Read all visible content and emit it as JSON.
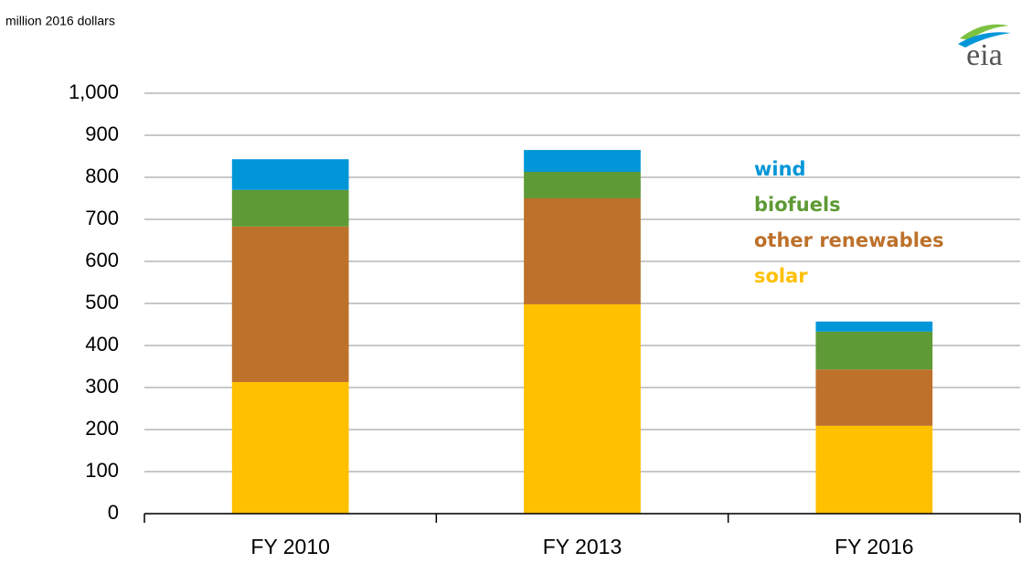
{
  "chart_data": {
    "type": "stacked_bar",
    "subtitle": "million 2016 dollars",
    "logo": "eia",
    "categories": [
      "FY 2010",
      "FY 2013",
      "FY 2016"
    ],
    "series": [
      {
        "name": "solar",
        "color": "#ffc000",
        "values": [
          313,
          498,
          209
        ]
      },
      {
        "name": "other renewables",
        "color": "#bd712b",
        "values": [
          370,
          252,
          134
        ]
      },
      {
        "name": "biofuels",
        "color": "#5e9a35",
        "values": [
          87,
          63,
          90
        ]
      },
      {
        "name": "wind",
        "color": "#0096d7",
        "values": [
          73,
          52,
          24
        ]
      }
    ],
    "ylim": [
      0,
      1000
    ],
    "yticks": [
      0,
      100,
      200,
      300,
      400,
      500,
      600,
      700,
      800,
      900,
      {
        "value": 1000,
        "label": "1,000"
      }
    ],
    "grid": true
  }
}
